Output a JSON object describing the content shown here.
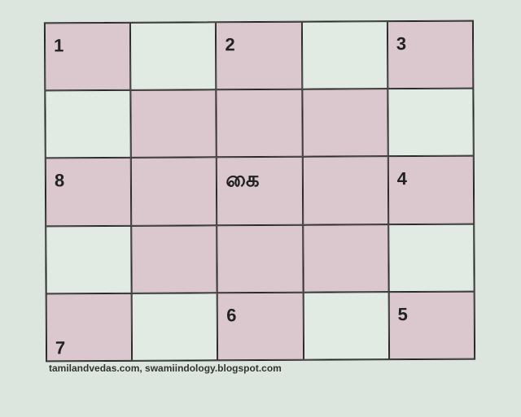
{
  "colors": {
    "background": "#dde6de",
    "shaded": "#dac8ce",
    "light": "#e2ebe3",
    "line": "#2a2a2a"
  },
  "grid": {
    "rows": [
      [
        {
          "shaded": true,
          "number": "1"
        },
        {
          "shaded": false
        },
        {
          "shaded": true,
          "number": "2"
        },
        {
          "shaded": false
        },
        {
          "shaded": true,
          "number": "3"
        }
      ],
      [
        {
          "shaded": false
        },
        {
          "shaded": true
        },
        {
          "shaded": true
        },
        {
          "shaded": true
        },
        {
          "shaded": false
        }
      ],
      [
        {
          "shaded": true,
          "number": "8"
        },
        {
          "shaded": true
        },
        {
          "shaded": true,
          "letter": "கை"
        },
        {
          "shaded": true
        },
        {
          "shaded": true,
          "number": "4"
        }
      ],
      [
        {
          "shaded": false
        },
        {
          "shaded": true
        },
        {
          "shaded": true
        },
        {
          "shaded": true
        },
        {
          "shaded": false
        }
      ],
      [
        {
          "shaded": true,
          "number": "7",
          "number_position": "bottom"
        },
        {
          "shaded": false
        },
        {
          "shaded": true,
          "number": "6"
        },
        {
          "shaded": false
        },
        {
          "shaded": true,
          "number": "5"
        }
      ]
    ]
  },
  "credit": "tamilandvedas.com, swamiindology.blogspot.com"
}
